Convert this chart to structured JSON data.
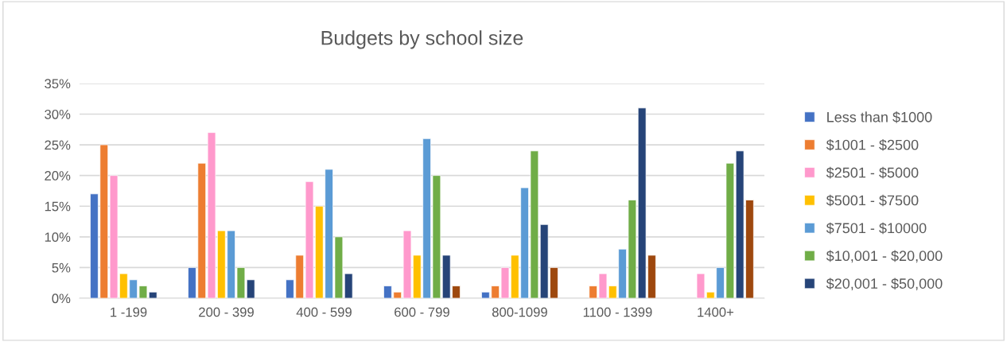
{
  "chart_data": {
    "type": "bar",
    "title": "Budgets by school size",
    "categories": [
      "1 -199",
      "200 - 399",
      "400 - 599",
      "600 - 799",
      "800-1099",
      "1100 - 1399",
      "1400+"
    ],
    "series": [
      {
        "name": "Less than $1000",
        "color": "#4472c4",
        "values": [
          17,
          5,
          3,
          2,
          1,
          null,
          null
        ]
      },
      {
        "name": "$1001 - $2500",
        "color": "#ed7d31",
        "values": [
          25,
          22,
          7,
          1,
          2,
          2,
          null
        ]
      },
      {
        "name": "$2501 - $5000",
        "color": "#ff99cc",
        "values": [
          20,
          27,
          19,
          11,
          5,
          4,
          4
        ]
      },
      {
        "name": "$5001 - $7500",
        "color": "#ffc000",
        "values": [
          4,
          11,
          15,
          7,
          7,
          2,
          1
        ]
      },
      {
        "name": "$7501 - $10000",
        "color": "#5b9bd5",
        "values": [
          3,
          11,
          21,
          26,
          18,
          8,
          5
        ]
      },
      {
        "name": "$10,001 - $20,000",
        "color": "#70ad47",
        "values": [
          2,
          5,
          10,
          20,
          24,
          16,
          22
        ]
      },
      {
        "name": "$20,001 - $50,000",
        "color": "#264478",
        "values": [
          1,
          3,
          4,
          7,
          12,
          31,
          24
        ]
      },
      {
        "color": "#9e480e",
        "values": [
          null,
          null,
          null,
          2,
          5,
          7,
          16
        ]
      }
    ],
    "ylim": [
      0,
      35
    ],
    "yticks": [
      {
        "value": 0,
        "label": "0%"
      },
      {
        "value": 5,
        "label": "5%"
      },
      {
        "value": 10,
        "label": "10%"
      },
      {
        "value": 15,
        "label": "15%"
      },
      {
        "value": 20,
        "label": "20%"
      },
      {
        "value": 25,
        "label": "25%"
      },
      {
        "value": 30,
        "label": "30%"
      },
      {
        "value": 35,
        "label": "35%"
      }
    ],
    "grid": "y",
    "legend": "right"
  }
}
